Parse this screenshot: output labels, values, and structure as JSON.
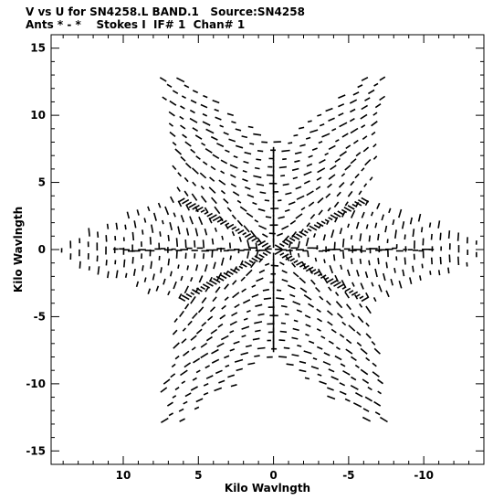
{
  "chart_data": {
    "type": "scatter",
    "title": "V vs U for SN4258.L BAND.1   Source:SN4258",
    "subtitle": "Ants * - *    Stokes I  IF# 1  Chan# 1",
    "xlabel": "Kilo Wavlngth",
    "ylabel": "Kilo Wavlngth",
    "xlim": [
      14.8,
      -14.0
    ],
    "ylim": [
      -16.0,
      16.0
    ],
    "x_reversed": true,
    "xticks": [
      10,
      5,
      0,
      -5,
      -10
    ],
    "yticks": [
      15,
      10,
      5,
      0,
      -5,
      -10,
      -15
    ],
    "grid": false,
    "description_of_coverage": "six-armed star pattern of uv tracks, arm tips near radius 15.5"
  }
}
